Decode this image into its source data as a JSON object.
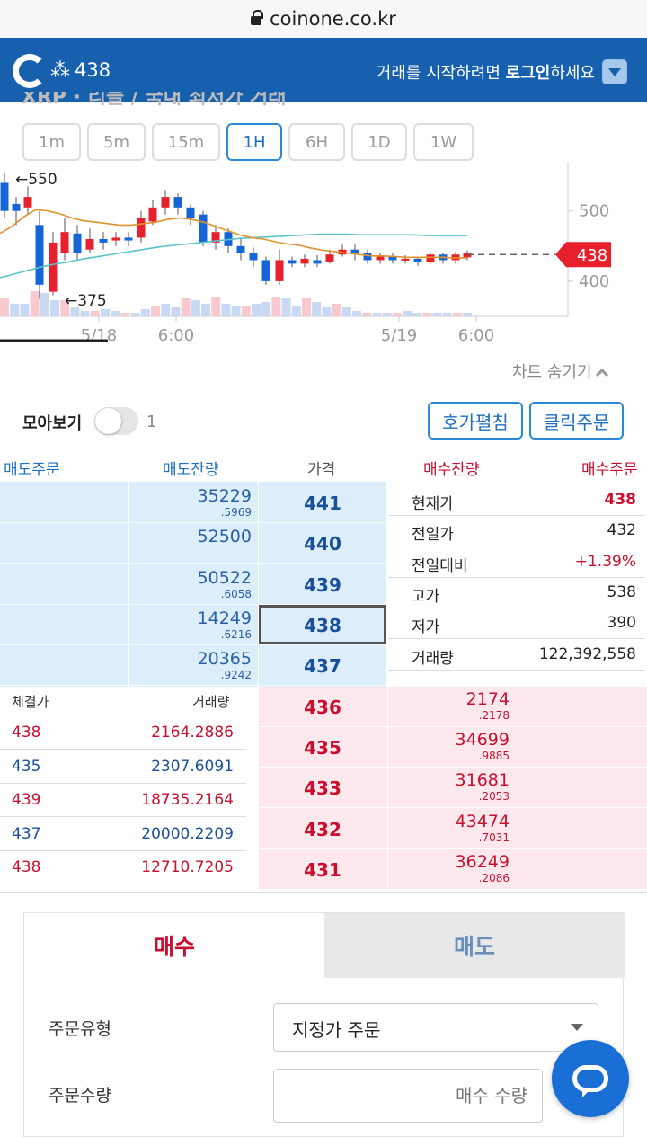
{
  "browser": {
    "url": "coinone.co.kr"
  },
  "header": {
    "coin_price": "438",
    "login_prefix": "거래를 시작하려면 ",
    "login_link": "로그인",
    "login_suffix": "하세요"
  },
  "subtitle": "XRP · 리플 / 국내 최저가 거래",
  "intervals": [
    "1m",
    "5m",
    "15m",
    "1H",
    "6H",
    "1D",
    "1W"
  ],
  "active_interval": "1H",
  "chart_data": {
    "type": "candlestick",
    "x_ticks": [
      "5/18",
      "6:00",
      "5/19",
      "6:00"
    ],
    "y_ticks": [
      500,
      400
    ],
    "ylim": [
      350,
      570
    ],
    "current_price": 438,
    "annotations": [
      "←550",
      "←375"
    ],
    "ma_short": [
      468,
      478,
      492,
      502,
      500,
      496,
      490,
      486,
      484,
      482,
      480,
      480,
      482,
      484,
      488,
      490,
      488,
      484,
      478,
      472,
      466,
      462,
      460,
      456,
      453,
      451,
      447,
      444,
      442,
      440,
      438,
      436,
      436,
      435,
      434,
      434,
      434,
      434,
      433,
      433
    ],
    "ma_long": [
      405,
      410,
      415,
      420,
      424,
      427,
      431,
      434,
      437,
      440,
      443,
      446,
      449,
      451,
      453,
      455,
      457,
      459,
      461,
      462,
      463,
      464,
      465,
      466,
      467,
      467,
      467,
      466,
      466,
      466,
      466,
      466,
      465,
      465,
      465,
      465
    ],
    "colors": {
      "up": "#e8202d",
      "down": "#1565d8",
      "ma_short": "#e0922d",
      "ma_long": "#5bc2c7"
    }
  },
  "chart_controls": {
    "hide_chart": "차트 숨기기"
  },
  "orderbook_controls": {
    "group_label": "모아보기",
    "group_count": "1",
    "expand_button": "호가펼침",
    "click_order_button": "클릭주문"
  },
  "orderbook_headers": {
    "ask_order": "매도주문",
    "ask_qty": "매도잔량",
    "price": "가격",
    "bid_qty": "매수잔량",
    "bid_order": "매수주문"
  },
  "asks": [
    {
      "price": "441",
      "qty": "35229",
      "frac": ".5969"
    },
    {
      "price": "440",
      "qty": "52500",
      "frac": ""
    },
    {
      "price": "439",
      "qty": "50522",
      "frac": ".6058"
    },
    {
      "price": "438",
      "qty": "14249",
      "frac": ".6216"
    },
    {
      "price": "437",
      "qty": "20365",
      "frac": ".9242"
    }
  ],
  "bids": [
    {
      "price": "436",
      "qty": "2174",
      "frac": ".2178"
    },
    {
      "price": "435",
      "qty": "34699",
      "frac": ".9885"
    },
    {
      "price": "433",
      "qty": "31681",
      "frac": ".2053"
    },
    {
      "price": "432",
      "qty": "43474",
      "frac": ".7031"
    },
    {
      "price": "431",
      "qty": "36249",
      "frac": ".2086"
    }
  ],
  "stats": [
    {
      "label": "현재가",
      "value": "438",
      "color": "#c8102e",
      "bold": true
    },
    {
      "label": "전일가",
      "value": "432",
      "color": "#222",
      "bold": false
    },
    {
      "label": "전일대비",
      "value": "+1.39%",
      "color": "#c8102e",
      "bold": false
    },
    {
      "label": "고가",
      "value": "538",
      "color": "#222",
      "bold": false
    },
    {
      "label": "저가",
      "value": "390",
      "color": "#222",
      "bold": false
    },
    {
      "label": "거래량",
      "value": "122,392,558",
      "color": "#222",
      "bold": false
    }
  ],
  "trades_header": {
    "price": "체결가",
    "volume": "거래량"
  },
  "trades": [
    {
      "price": "438",
      "volume": "2164.2886",
      "color": "#c8102e"
    },
    {
      "price": "435",
      "volume": "2307.6091",
      "color": "#1b4f9c"
    },
    {
      "price": "439",
      "volume": "18735.2164",
      "color": "#c8102e"
    },
    {
      "price": "437",
      "volume": "20000.2209",
      "color": "#1b4f9c"
    },
    {
      "price": "438",
      "volume": "12710.7205",
      "color": "#c8102e"
    }
  ],
  "order_form": {
    "tab_buy": "매수",
    "tab_sell": "매도",
    "order_type_label": "주문유형",
    "order_type_value": "지정가 주문",
    "quantity_label": "주문수량",
    "quantity_placeholder": "매수 수량"
  }
}
